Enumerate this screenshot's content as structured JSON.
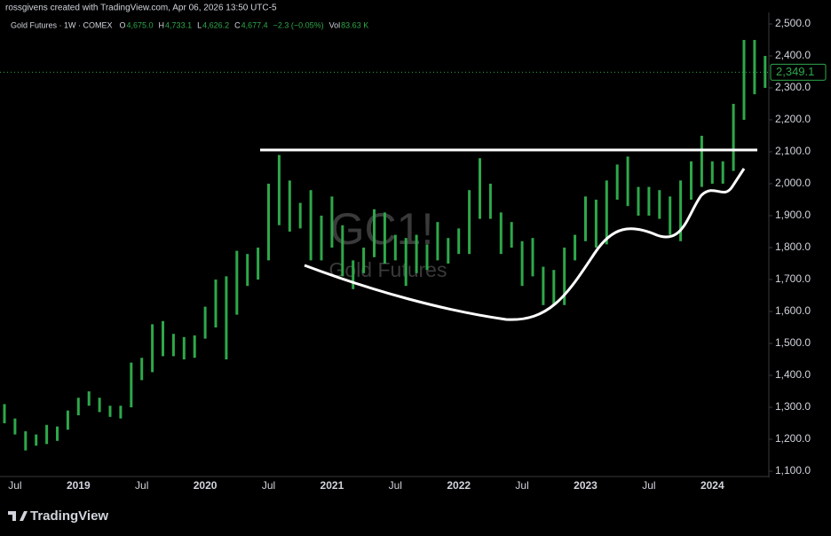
{
  "header": "rossgivens created with TradingView.com, Apr 06, 2026 13:50 UTC-5",
  "legend": {
    "symbol": "Gold Futures · 1W · COMEX",
    "items": [
      {
        "key": "O",
        "text": "4,675.0"
      },
      {
        "key": "H",
        "text": "4,733.1"
      },
      {
        "key": "L",
        "text": "4,626.2"
      },
      {
        "key": "C",
        "text": "4,677.4"
      },
      {
        "key": "",
        "text": "−2.3 (−0.05%)"
      },
      {
        "key": "Vol",
        "text": "83.63 K"
      }
    ]
  },
  "watermark": {
    "ticker": "GC1!",
    "name": "Gold Futures"
  },
  "footer": "TradingView",
  "chart_data": {
    "type": "range",
    "color": "#2ea84a",
    "x": [
      "2018-06",
      "2018-07",
      "2018-08",
      "2018-09",
      "2018-10",
      "2018-11",
      "2018-12",
      "2019-01",
      "2019-02",
      "2019-03",
      "2019-04",
      "2019-05",
      "2019-06",
      "2019-07",
      "2019-08",
      "2019-09",
      "2019-10",
      "2019-11",
      "2019-12",
      "2020-01",
      "2020-02",
      "2020-03",
      "2020-04",
      "2020-05",
      "2020-06",
      "2020-07",
      "2020-08",
      "2020-09",
      "2020-10",
      "2020-11",
      "2020-12",
      "2021-01",
      "2021-02",
      "2021-03",
      "2021-04",
      "2021-05",
      "2021-06",
      "2021-07",
      "2021-08",
      "2021-09",
      "2021-10",
      "2021-11",
      "2021-12",
      "2022-01",
      "2022-02",
      "2022-03",
      "2022-04",
      "2022-05",
      "2022-06",
      "2022-07",
      "2022-08",
      "2022-09",
      "2022-10",
      "2022-11",
      "2022-12",
      "2023-01",
      "2023-02",
      "2023-03",
      "2023-04",
      "2023-05",
      "2023-06",
      "2023-07",
      "2023-08",
      "2023-09",
      "2023-10",
      "2023-11",
      "2023-12",
      "2024-01",
      "2024-02",
      "2024-03",
      "2024-04",
      "2024-05",
      "2024-06"
    ],
    "high": [
      1310,
      1265,
      1225,
      1215,
      1245,
      1240,
      1290,
      1330,
      1350,
      1330,
      1305,
      1305,
      1440,
      1455,
      1560,
      1570,
      1530,
      1520,
      1525,
      1615,
      1700,
      1710,
      1790,
      1780,
      1800,
      2000,
      2090,
      2010,
      1940,
      1980,
      1900,
      1960,
      1870,
      1760,
      1800,
      1920,
      1910,
      1840,
      1830,
      1840,
      1810,
      1880,
      1830,
      1860,
      1980,
      2080,
      2000,
      1910,
      1880,
      1820,
      1830,
      1740,
      1730,
      1800,
      1840,
      1960,
      1950,
      2010,
      2060,
      2085,
      1990,
      1990,
      1980,
      1960,
      2010,
      2070,
      2150,
      2070,
      2070,
      2250,
      2450,
      2450,
      2400
    ],
    "low": [
      1250,
      1215,
      1165,
      1180,
      1185,
      1195,
      1230,
      1275,
      1305,
      1285,
      1270,
      1265,
      1300,
      1385,
      1410,
      1460,
      1460,
      1450,
      1455,
      1515,
      1550,
      1450,
      1590,
      1680,
      1700,
      1760,
      1870,
      1850,
      1860,
      1760,
      1760,
      1800,
      1710,
      1670,
      1720,
      1770,
      1750,
      1760,
      1680,
      1720,
      1730,
      1760,
      1750,
      1780,
      1780,
      1890,
      1890,
      1780,
      1800,
      1680,
      1710,
      1620,
      1620,
      1620,
      1760,
      1820,
      1800,
      1810,
      1950,
      1930,
      1900,
      1900,
      1890,
      1840,
      1820,
      1950,
      1990,
      2000,
      2000,
      2040,
      2200,
      2280,
      2300
    ],
    "ylim": [
      1090,
      2540
    ],
    "yticks": [
      {
        "value": 1100,
        "label": "1,100.0"
      },
      {
        "value": 1200,
        "label": "1,200.0"
      },
      {
        "value": 1300,
        "label": "1,300.0"
      },
      {
        "value": 1400,
        "label": "1,400.0"
      },
      {
        "value": 1500,
        "label": "1,500.0"
      },
      {
        "value": 1600,
        "label": "1,600.0"
      },
      {
        "value": 1700,
        "label": "1,700.0"
      },
      {
        "value": 1800,
        "label": "1,800.0"
      },
      {
        "value": 1900,
        "label": "1,900.0"
      },
      {
        "value": 2000,
        "label": "2,000.0"
      },
      {
        "value": 2100,
        "label": "2,100.0"
      },
      {
        "value": 2200,
        "label": "2,200.0"
      },
      {
        "value": 2300,
        "label": "2,300.0"
      },
      {
        "value": 2400,
        "label": "2,400.0"
      },
      {
        "value": 2500,
        "label": "2,500.0"
      }
    ],
    "xticks": [
      {
        "value": "2018-07",
        "label": "Jul"
      },
      {
        "value": "2019-01",
        "label": "2019"
      },
      {
        "value": "2019-07",
        "label": "Jul"
      },
      {
        "value": "2020-01",
        "label": "2020"
      },
      {
        "value": "2020-07",
        "label": "Jul"
      },
      {
        "value": "2021-01",
        "label": "2021"
      },
      {
        "value": "2021-07",
        "label": "Jul"
      },
      {
        "value": "2022-01",
        "label": "2022"
      },
      {
        "value": "2022-07",
        "label": "Jul"
      },
      {
        "value": "2023-01",
        "label": "2023"
      },
      {
        "value": "2023-07",
        "label": "Jul"
      },
      {
        "value": "2024-01",
        "label": "2024"
      }
    ],
    "last_price": {
      "value": 2349.1,
      "label": "2,349.1"
    }
  }
}
